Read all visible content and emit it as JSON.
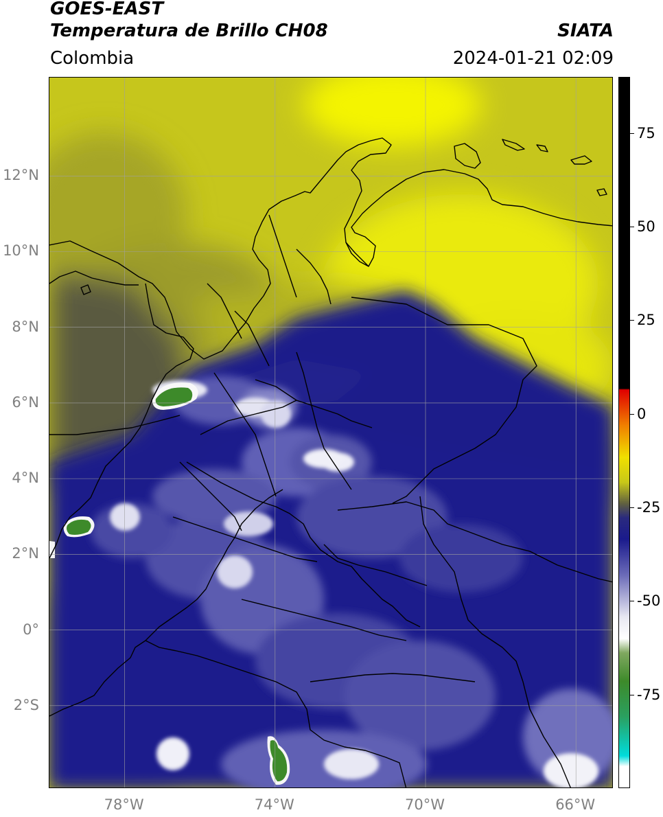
{
  "header": {
    "title_line1": "GOES-EAST",
    "title_line2": "Temperatura de Brillo CH08",
    "region": "Colombia",
    "organization": "SIATA",
    "datetime": "2024-01-21 02:09"
  },
  "map": {
    "lon_range": [
      -80,
      -65
    ],
    "lat_range": [
      -4.2,
      14.6
    ],
    "grid": true,
    "lat_ticks": [
      {
        "value": 12,
        "label": "12°N"
      },
      {
        "value": 10,
        "label": "10°N"
      },
      {
        "value": 8,
        "label": "8°N"
      },
      {
        "value": 6,
        "label": "6°N"
      },
      {
        "value": 4,
        "label": "4°N"
      },
      {
        "value": 2,
        "label": "2°N"
      },
      {
        "value": 0,
        "label": "0°"
      },
      {
        "value": -2,
        "label": "2°S"
      }
    ],
    "lon_ticks": [
      {
        "value": -78,
        "label": "78°W"
      },
      {
        "value": -74,
        "label": "74°W"
      },
      {
        "value": -70,
        "label": "70°W"
      },
      {
        "value": -66,
        "label": "66°W"
      }
    ],
    "colors": {
      "clear_yellow": "#c8c818",
      "bright_yellow": "#f2f200",
      "olive": "#6e6e30",
      "navy": "#1a1a8c",
      "white": "#f2f2f8",
      "green": "#3c8a28"
    }
  },
  "colorbar": {
    "range": [
      -100,
      90
    ],
    "ticks": [
      {
        "value": 75,
        "label": "75"
      },
      {
        "value": 50,
        "label": "50"
      },
      {
        "value": 25,
        "label": "25"
      },
      {
        "value": 0,
        "label": "0"
      },
      {
        "value": -25,
        "label": "-25"
      },
      {
        "value": -50,
        "label": "-50"
      },
      {
        "value": -75,
        "label": "-75"
      }
    ]
  }
}
